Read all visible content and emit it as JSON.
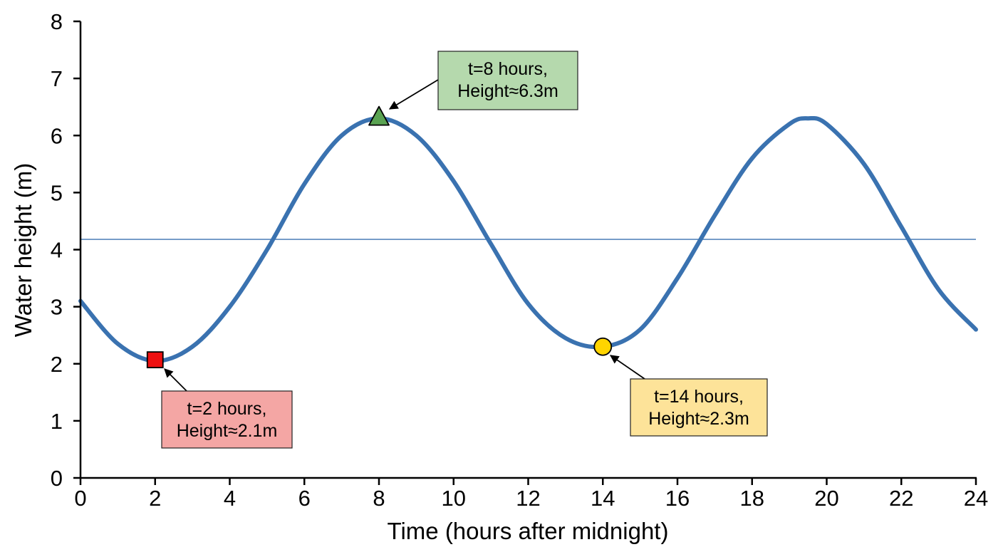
{
  "chart_data": {
    "type": "line",
    "title": "",
    "xlabel": "Time (hours after midnight)",
    "ylabel": "Water height (m)",
    "xlim": [
      0,
      24
    ],
    "ylim": [
      0,
      8
    ],
    "x_ticks": [
      0,
      2,
      4,
      6,
      8,
      10,
      12,
      14,
      16,
      18,
      20,
      22,
      24
    ],
    "y_ticks": [
      0,
      1,
      2,
      3,
      4,
      5,
      6,
      7,
      8
    ],
    "grid": false,
    "legend": "none",
    "series": [
      {
        "color": "#3a72b0",
        "x": [
          0,
          1,
          2,
          3,
          4,
          5,
          6,
          7,
          8,
          9,
          10,
          11,
          12,
          13,
          14,
          15,
          16,
          17,
          18,
          19,
          19.5,
          20,
          21,
          22,
          23,
          24
        ],
        "y": [
          3.1,
          2.35,
          2.05,
          2.3,
          3.0,
          4.0,
          5.15,
          6.0,
          6.3,
          6.0,
          5.2,
          4.1,
          3.05,
          2.45,
          2.3,
          2.6,
          3.5,
          4.6,
          5.6,
          6.2,
          6.3,
          6.2,
          5.5,
          4.4,
          3.3,
          2.6
        ]
      }
    ],
    "reference_line": {
      "y": 4.18,
      "color": "#3a72b0"
    },
    "annotations": [
      {
        "x": 2,
        "y": 2.07,
        "marker": "square",
        "marker_color": "#ee1111",
        "lines": [
          "t=2 hours,",
          "Height≈2.1m"
        ],
        "box_color": "#f4a6a4"
      },
      {
        "x": 8,
        "y": 6.32,
        "marker": "triangle",
        "marker_color": "#5aa352",
        "lines": [
          "t=8 hours,",
          "Height≈6.3m"
        ],
        "box_color": "#b5d9ad"
      },
      {
        "x": 14,
        "y": 2.3,
        "marker": "circle",
        "marker_color": "#ffd400",
        "lines": [
          "t=14 hours,",
          "Height≈2.3m"
        ],
        "box_color": "#fde399"
      }
    ]
  }
}
